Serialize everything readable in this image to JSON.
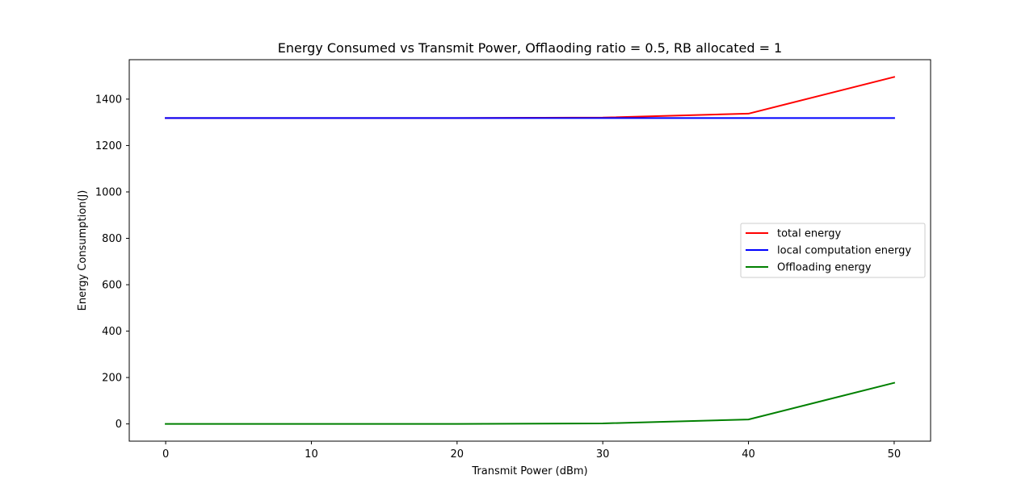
{
  "chart_data": {
    "type": "line",
    "title": "Energy Consumed vs Transmit Power, Offlaoding ratio = 0.5, RB allocated = 1",
    "xlabel": "Transmit Power (dBm)",
    "ylabel": "Energy Consumption(J)",
    "x": [
      0,
      10,
      20,
      30,
      40,
      50
    ],
    "xlim": [
      -2.5,
      52.5
    ],
    "ylim": [
      -74.3,
      1570
    ],
    "xticks": [
      0,
      10,
      20,
      30,
      40,
      50
    ],
    "yticks": [
      0,
      200,
      400,
      600,
      800,
      1000,
      1200,
      1400
    ],
    "grid": false,
    "legend_position": "center-right",
    "series": [
      {
        "name": "total energy",
        "color": "#ff0000",
        "values": [
          1318.3,
          1318.3,
          1318.4,
          1320.5,
          1337.4,
          1495.4
        ]
      },
      {
        "name": "local computation energy",
        "color": "#0000ff",
        "values": [
          1318.3,
          1318.3,
          1318.3,
          1318.3,
          1318.3,
          1318.3
        ]
      },
      {
        "name": "Offloading energy",
        "color": "#008000",
        "values": [
          0.0,
          0.02,
          0.2,
          2.2,
          19.1,
          177.1
        ]
      }
    ]
  }
}
